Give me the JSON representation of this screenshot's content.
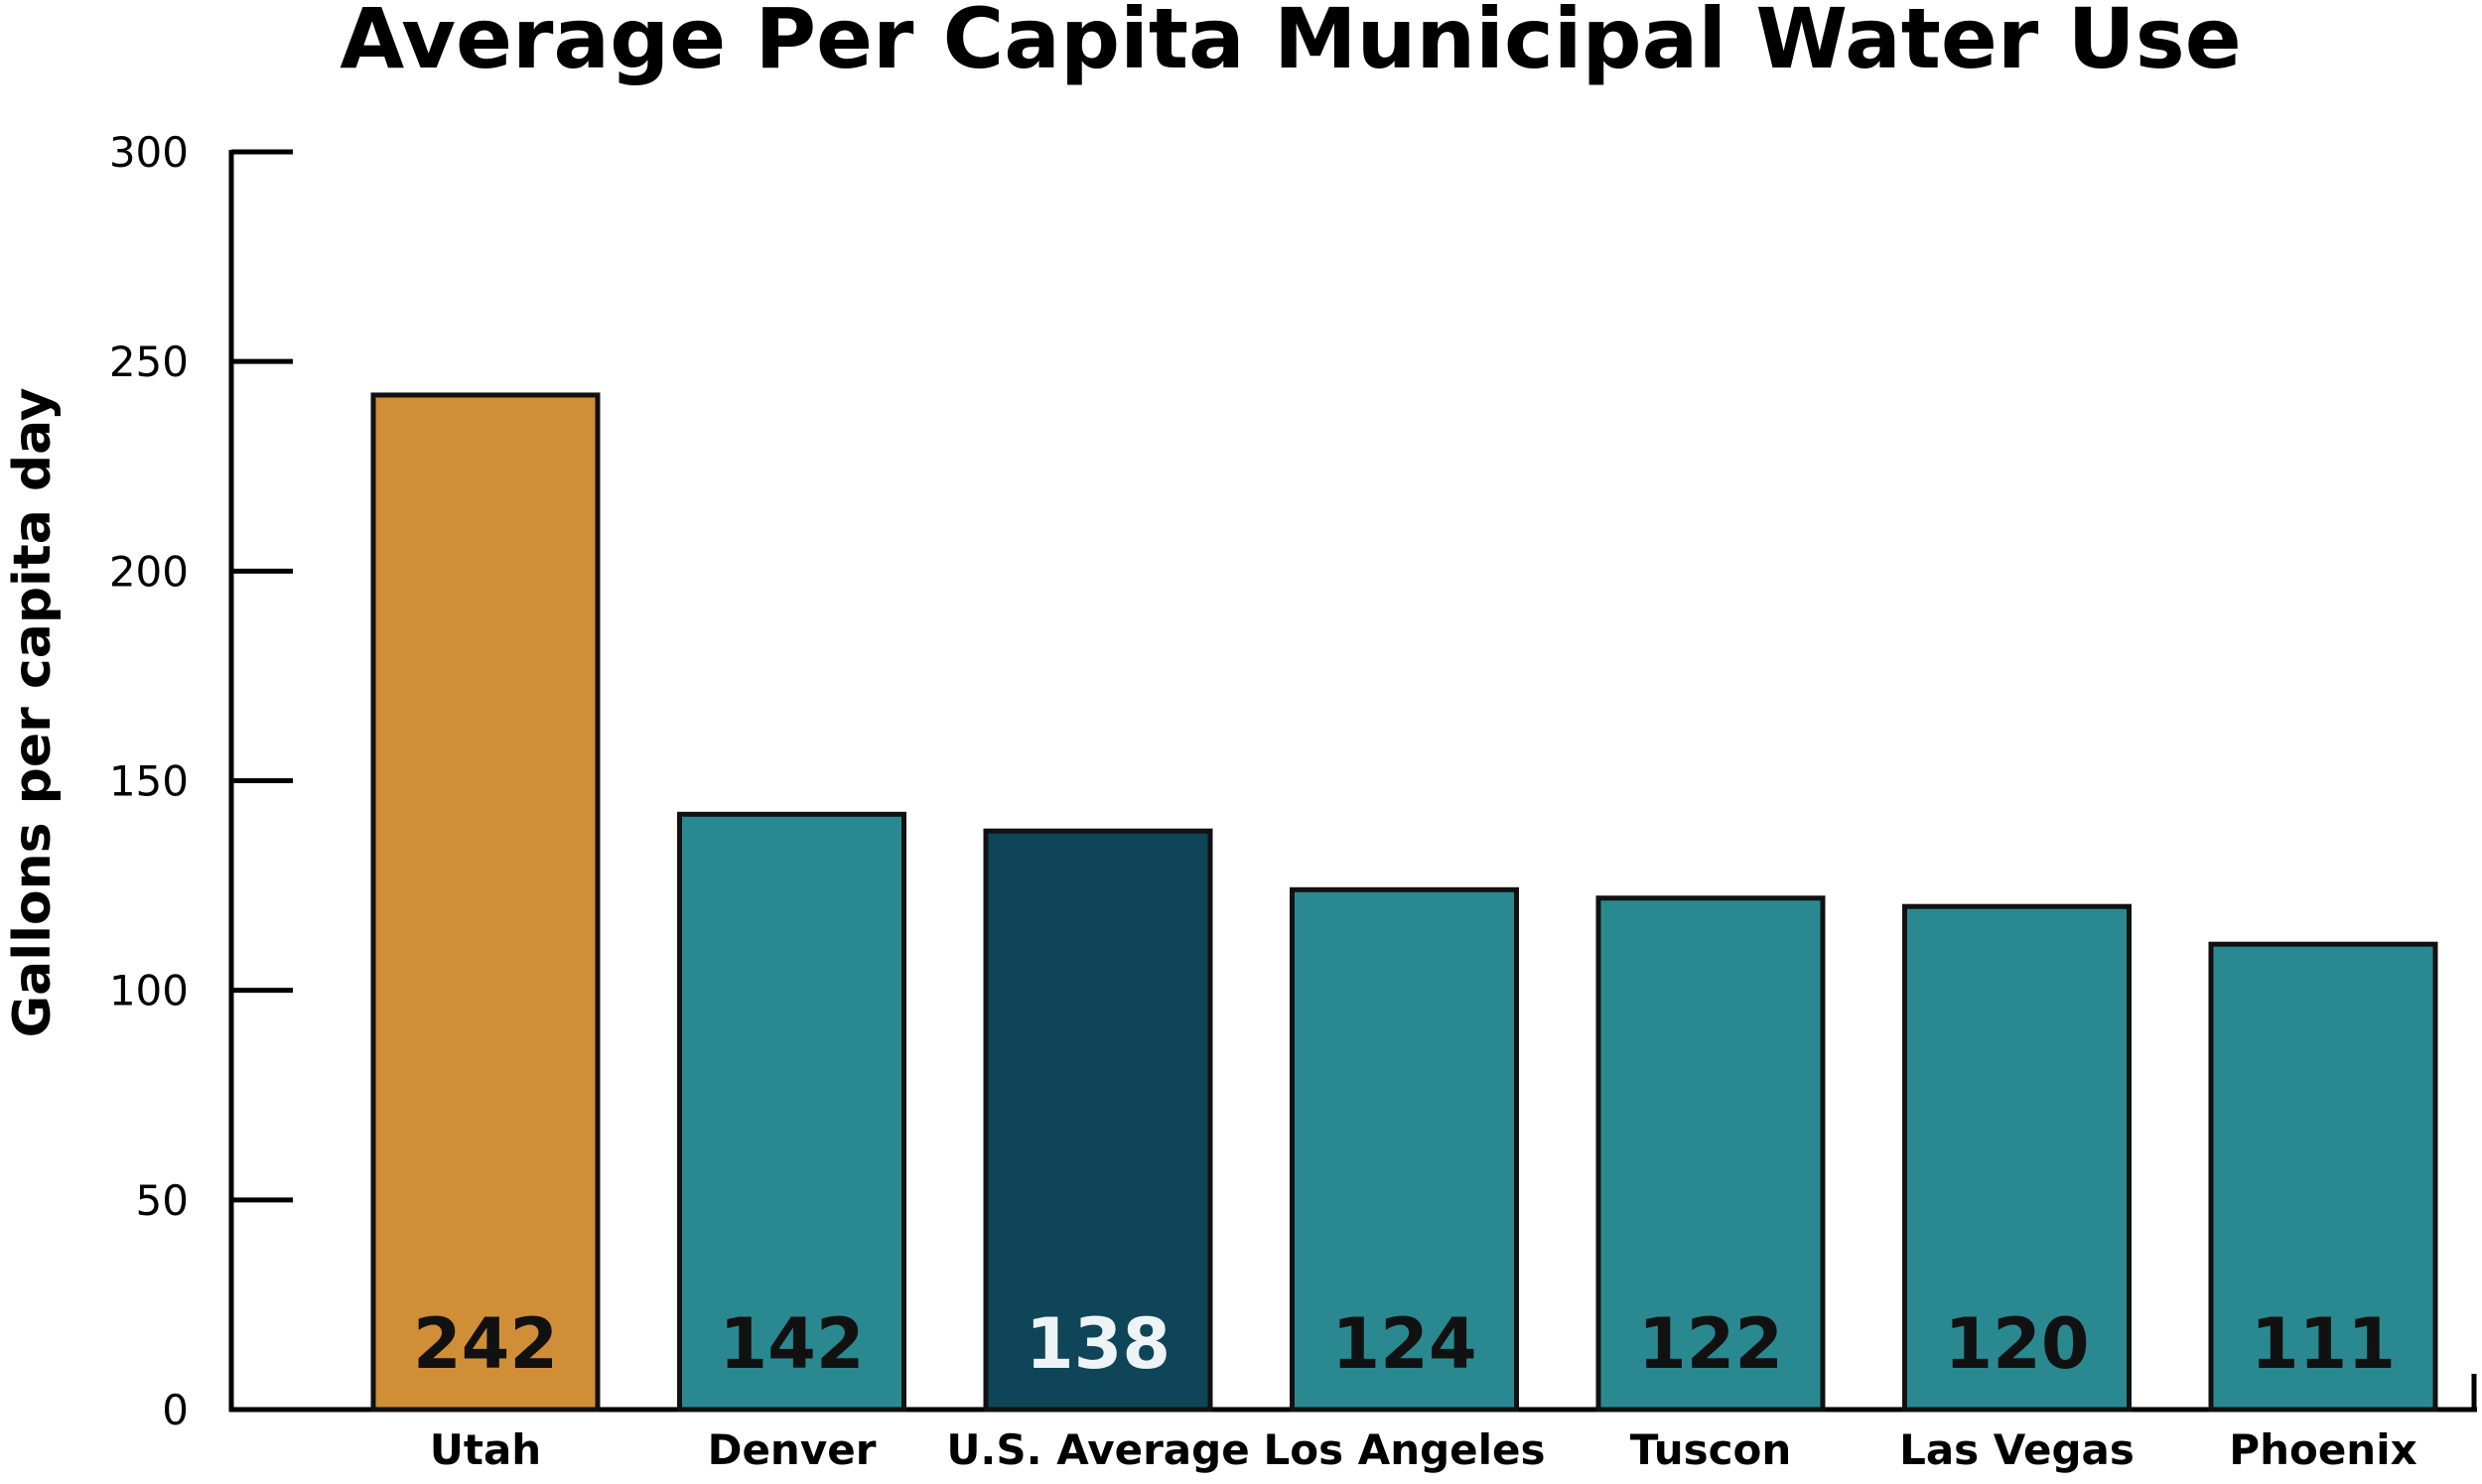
{
  "chart_data": {
    "type": "bar",
    "title": "Average Per Capita Municipal Water Use",
    "xlabel": "",
    "ylabel": "Gallons per capita day",
    "categories": [
      "Utah",
      "Denver",
      "U.S. Average",
      "Los Angeles",
      "Tuscon",
      "Las Vegas",
      "Phoenix"
    ],
    "values": [
      242,
      142,
      138,
      124,
      122,
      120,
      111
    ],
    "value_labels": [
      "242",
      "142",
      "138",
      "124",
      "122",
      "120",
      "111"
    ],
    "ylim": [
      0,
      300
    ],
    "yticks": [
      0,
      50,
      100,
      150,
      200,
      250,
      300
    ],
    "ytick_labels": [
      "0",
      "50",
      "100",
      "150",
      "200",
      "250",
      "300"
    ],
    "grid": false,
    "legend": "none",
    "bar_colors": [
      "#D08E37",
      "#2A8990",
      "#0E4558",
      "#2A8990",
      "#2A8990",
      "#2A8990",
      "#2A8990"
    ],
    "value_label_colors": [
      "#111111",
      "#111111",
      "#EEF3F5",
      "#111111",
      "#111111",
      "#111111",
      "#111111"
    ],
    "outline_color": "#111111"
  }
}
